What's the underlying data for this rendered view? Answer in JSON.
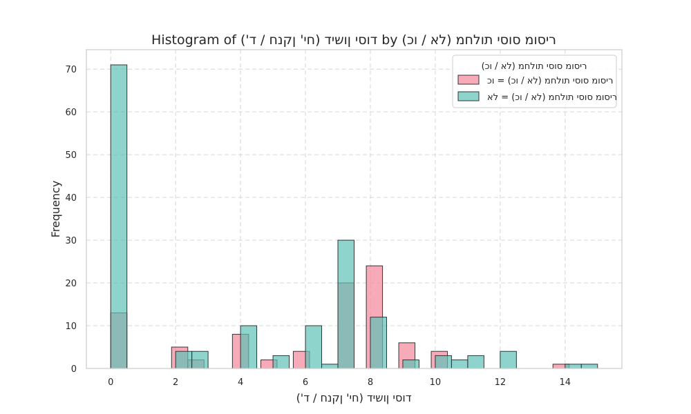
{
  "chart_data": {
    "type": "bar",
    "title": "Histogram of דוסי ןושיד (חי' ןקנח / ד') by ריסומ סוסי תולחמ (לא / וכ)",
    "xlabel": "דוסי ןושיד (חי' ןקנח / ד')",
    "ylabel": "Frequency",
    "xlim": [
      -0.75,
      15.75
    ],
    "ylim": [
      0,
      74.55
    ],
    "xticks": [
      0,
      2,
      4,
      6,
      8,
      10,
      12,
      14
    ],
    "yticks": [
      0,
      10,
      20,
      30,
      40,
      50,
      60,
      70
    ],
    "grid": true,
    "legend": {
      "title": "ריסומ סוסי תולחמ (לא / וכ)",
      "placement": "top-right"
    },
    "series": [
      {
        "name": "ריסומ סוסי תולחמ (לא / וכ) = וכ",
        "color": "#f4879a",
        "bins": [
          {
            "x0": 0.0,
            "x1": 0.5,
            "count": 13
          },
          {
            "x0": 1.875,
            "x1": 2.375,
            "count": 5
          },
          {
            "x0": 2.375,
            "x1": 2.875,
            "count": 2
          },
          {
            "x0": 3.75,
            "x1": 4.25,
            "count": 8
          },
          {
            "x0": 4.625,
            "x1": 5.125,
            "count": 2
          },
          {
            "x0": 5.625,
            "x1": 6.125,
            "count": 4
          },
          {
            "x0": 7.0,
            "x1": 7.5,
            "count": 20
          },
          {
            "x0": 7.875,
            "x1": 8.375,
            "count": 24
          },
          {
            "x0": 8.875,
            "x1": 9.375,
            "count": 6
          },
          {
            "x0": 9.875,
            "x1": 10.375,
            "count": 4
          },
          {
            "x0": 13.625,
            "x1": 14.125,
            "count": 1
          }
        ]
      },
      {
        "name": "ריסומ סוסי תולחמ (לא / וכ) = לא",
        "color": "#5ec1b6",
        "bins": [
          {
            "x0": 0.0,
            "x1": 0.5,
            "count": 71
          },
          {
            "x0": 2.0,
            "x1": 2.5,
            "count": 4
          },
          {
            "x0": 2.5,
            "x1": 3.0,
            "count": 4
          },
          {
            "x0": 4.0,
            "x1": 4.5,
            "count": 10
          },
          {
            "x0": 5.0,
            "x1": 5.5,
            "count": 3
          },
          {
            "x0": 6.0,
            "x1": 6.5,
            "count": 10
          },
          {
            "x0": 6.5,
            "x1": 7.0,
            "count": 1
          },
          {
            "x0": 7.0,
            "x1": 7.5,
            "count": 30
          },
          {
            "x0": 8.0,
            "x1": 8.5,
            "count": 12
          },
          {
            "x0": 9.0,
            "x1": 9.5,
            "count": 2
          },
          {
            "x0": 10.0,
            "x1": 10.5,
            "count": 3
          },
          {
            "x0": 10.5,
            "x1": 11.0,
            "count": 2
          },
          {
            "x0": 11.0,
            "x1": 11.5,
            "count": 3
          },
          {
            "x0": 12.0,
            "x1": 12.5,
            "count": 4
          },
          {
            "x0": 14.0,
            "x1": 14.5,
            "count": 1
          },
          {
            "x0": 14.5,
            "x1": 15.0,
            "count": 1
          }
        ]
      }
    ]
  }
}
